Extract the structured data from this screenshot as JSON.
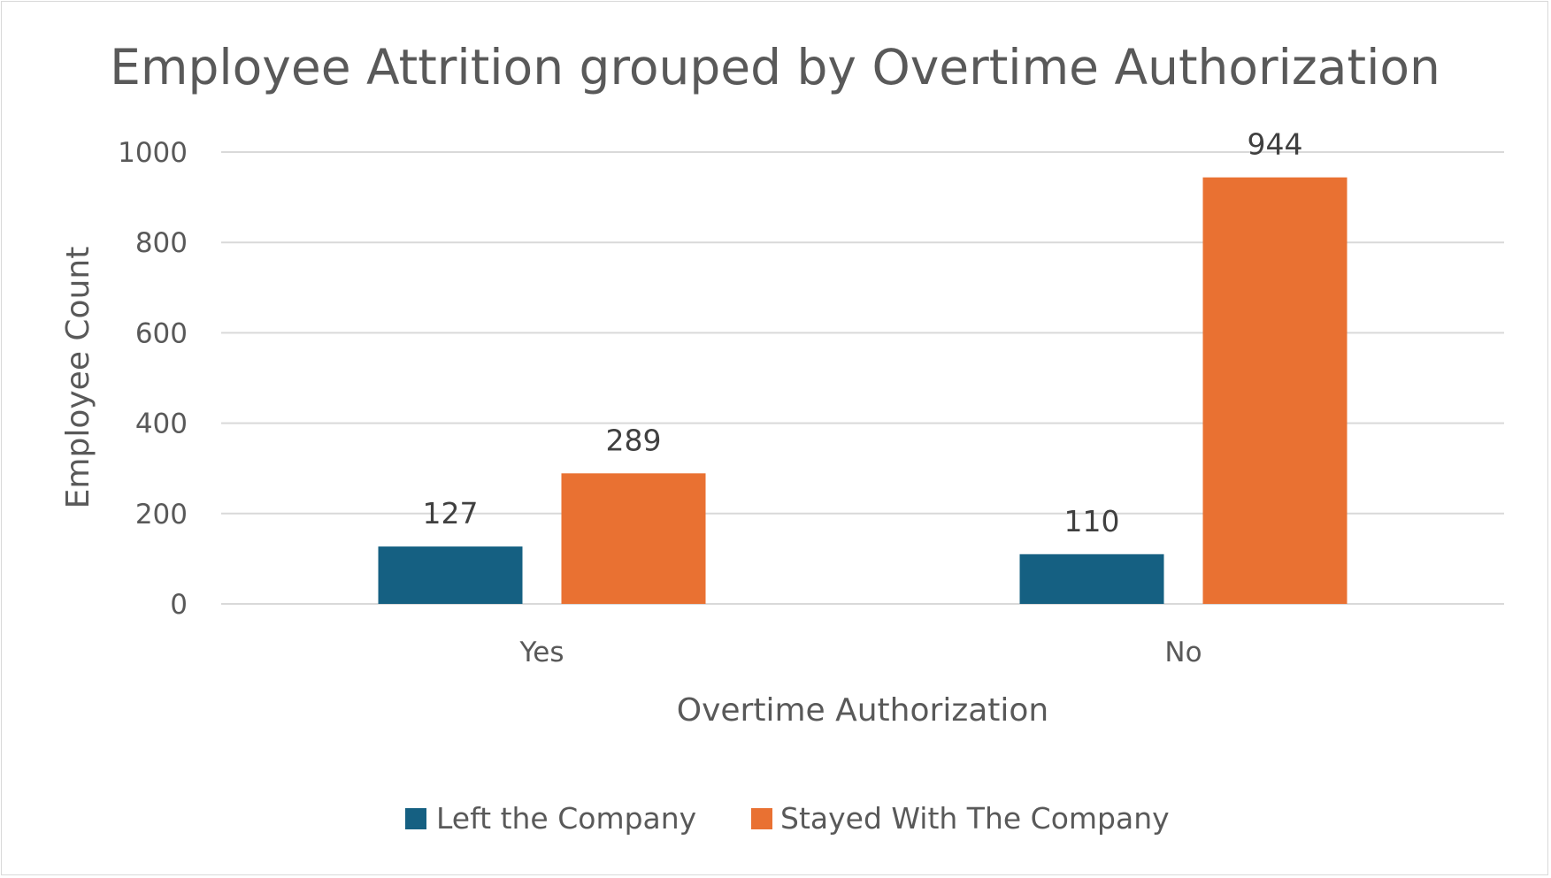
{
  "chart_data": {
    "type": "bar",
    "title": "Employee Attrition grouped by Overtime Authorization",
    "xlabel": "Overtime Authorization",
    "ylabel": "Employee Count",
    "categories": [
      "Yes",
      "No"
    ],
    "series": [
      {
        "name": "Left the Company",
        "values": [
          127,
          110
        ],
        "color": "#156082"
      },
      {
        "name": "Stayed With The Company",
        "values": [
          289,
          944
        ],
        "color": "#E97132"
      }
    ],
    "ylim": [
      0,
      1000
    ],
    "yticks": [
      0,
      200,
      400,
      600,
      800,
      1000
    ],
    "grid": true,
    "legend_position": "bottom",
    "data_labels": true
  }
}
